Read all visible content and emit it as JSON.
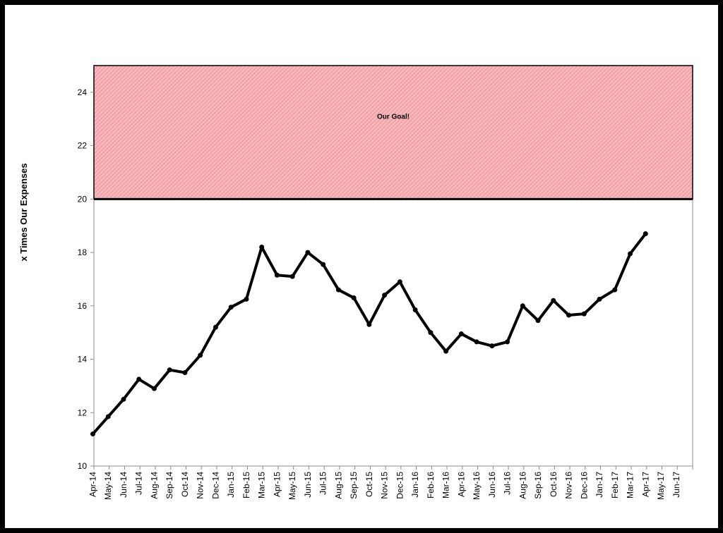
{
  "chart_data": {
    "type": "line",
    "ylabel": "x Times Our Expenses",
    "xlabel": "",
    "ylim": [
      10,
      25
    ],
    "yticks": [
      10,
      12,
      14,
      16,
      18,
      20,
      22,
      24
    ],
    "categories": [
      "Apr-14",
      "May-14",
      "Jun-14",
      "Jul-14",
      "Aug-14",
      "Sep-14",
      "Oct-14",
      "Nov-14",
      "Dec-14",
      "Jan-15",
      "Feb-15",
      "Mar-15",
      "Apr-15",
      "May-15",
      "Jun-15",
      "Jul-15",
      "Aug-15",
      "Sep-15",
      "Oct-15",
      "Nov-15",
      "Dec-15",
      "Jan-16",
      "Feb-16",
      "Mar-16",
      "Apr-16",
      "May-16",
      "Jun-16",
      "Jul-16",
      "Aug-16",
      "Sep-16",
      "Oct-16",
      "Nov-16",
      "Dec-16",
      "Jan-17",
      "Feb-17",
      "Mar-17",
      "Apr-17",
      "May-17",
      "Jun-17"
    ],
    "series": [
      {
        "values": [
          11.2,
          11.85,
          12.5,
          13.25,
          12.9,
          13.6,
          13.5,
          14.15,
          15.2,
          15.95,
          16.25,
          18.2,
          17.15,
          17.1,
          18.0,
          17.55,
          16.6,
          16.3,
          15.3,
          16.4,
          16.9,
          15.85,
          15.0,
          14.3,
          14.95,
          14.65,
          14.5,
          14.65,
          16.0,
          15.45,
          16.2,
          15.65,
          15.7,
          16.25,
          16.6,
          17.95,
          18.7,
          null,
          null
        ],
        "color": "#000000"
      }
    ],
    "goal_band": {
      "label": "Our Goal!",
      "from": 20,
      "to": 25,
      "fill_color": "#f6b8bc",
      "hatch_color": "#e8898f",
      "border_color": "#000000"
    },
    "grid": false,
    "legend": "none"
  }
}
